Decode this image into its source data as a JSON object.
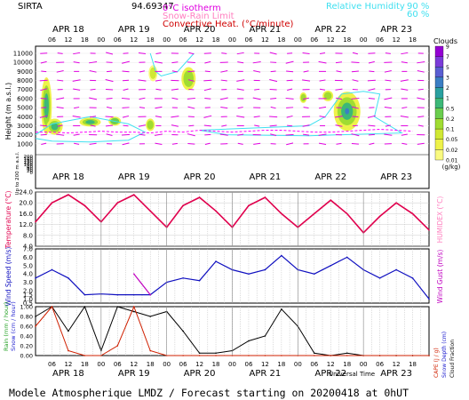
{
  "header": {
    "station": "SIRTA",
    "value": "94.69347",
    "isotherm_label": "0°C isotherm",
    "snow_rain_label": "Snow-Rain Limit",
    "convective_label": "Convective Heat. (°C/minute)",
    "rh_label": "Relative Humidity",
    "rh_90": "90 %",
    "rh_60": "60 %"
  },
  "footer": {
    "title": "Modele Atmospherique LMDZ / Forecast starting on 20200418 at 0hUT",
    "time_label": "Universal Time"
  },
  "colors": {
    "panel_line": "#000000",
    "temperature": "#e0004d",
    "wind": "#1010c0",
    "gust": "#c000c0",
    "rain": "#d02000",
    "cloud_fraction": "#000000",
    "rh": "#40e0f0",
    "isotherm": "#ff00ff"
  },
  "chart_data": [
    {
      "type": "heatmap",
      "name": "clouds-height",
      "ylabel": "Height (m a.s.l.)",
      "ylabel_low": "Up to 200 m a.s.l.",
      "days": [
        "APR 18",
        "APR 19",
        "APR 20",
        "APR 21",
        "APR 22",
        "APR 23"
      ],
      "hour_ticks": [
        "06",
        "12",
        "18",
        "00"
      ],
      "y_ticks_upper": [
        "11000",
        "10000",
        "9000",
        "8000",
        "7000",
        "6000",
        "5000",
        "4000",
        "3000",
        "2000",
        "1000"
      ],
      "y_ticks_lower": [
        "200",
        "180",
        "160",
        "140",
        "120",
        "100",
        "80",
        "60",
        "40",
        "20",
        "0"
      ],
      "colorbar_title": "Clouds",
      "colorbar_unit": "(g/kg)",
      "colorbar_ticks": [
        "9",
        "7",
        "5",
        "3",
        "2",
        "1",
        "0.5",
        "0.2",
        "0.1",
        "0.05",
        "0.02",
        "0.01"
      ],
      "colorbar_colors": [
        "#9400d3",
        "#7b3bd9",
        "#5a5ed2",
        "#3b7ec4",
        "#2aa0a0",
        "#3cb878",
        "#6acd4e",
        "#a0dc32",
        "#d0e834",
        "#eef24a",
        "#fafa80"
      ],
      "isotherm_height_m": [
        2300,
        2300,
        2200,
        2300,
        2400,
        2300,
        2300,
        2200,
        2400,
        2300,
        2500,
        2400,
        2300,
        2400,
        2500,
        2500,
        2400,
        2300,
        2300,
        2400,
        2500,
        2600,
        2500,
        2400
      ]
    },
    {
      "type": "line",
      "name": "temperature",
      "ylabel": "Temperature (°C)",
      "ylabel_right": "HUMIDEX (°C)",
      "ylim": [
        4,
        24
      ],
      "y_ticks": [
        "24.0",
        "20.0",
        "16.0",
        "12.0",
        "8.0",
        "4.0"
      ],
      "x_hours": [
        0,
        6,
        12,
        18,
        24,
        30,
        36,
        42,
        48,
        54,
        60,
        66,
        72,
        78,
        84,
        90,
        96,
        102,
        108,
        114,
        120,
        126,
        132,
        138,
        144
      ],
      "values": [
        13,
        20,
        23,
        19,
        13,
        20,
        23,
        17,
        11,
        19,
        22,
        17,
        11,
        19,
        22,
        16,
        11,
        16,
        21,
        16,
        9,
        15,
        20,
        16,
        10
      ]
    },
    {
      "type": "line",
      "name": "wind",
      "ylabel": "Wind Speed (m/s)",
      "ylabel_right": "Wind Gust (m/s)",
      "ylim": [
        0.5,
        7.0
      ],
      "y_ticks": [
        "7.0",
        "6.0",
        "5.0",
        "4.0",
        "3.0",
        "2.0",
        "1.5",
        "1.0",
        "0.5"
      ],
      "x_hours": [
        0,
        6,
        12,
        18,
        24,
        30,
        36,
        42,
        48,
        54,
        60,
        66,
        72,
        78,
        84,
        90,
        96,
        102,
        108,
        114,
        120,
        126,
        132,
        138,
        144
      ],
      "series": [
        {
          "values": [
            3.5,
            4.5,
            3.5,
            1.5,
            1.6,
            1.5,
            1.5,
            1.5,
            3.0,
            3.5,
            3.2,
            5.5,
            4.5,
            4.0,
            4.5,
            6.2,
            4.5,
            4.0,
            5.0,
            6.0,
            4.5,
            3.5,
            4.5,
            3.5,
            1.0
          ]
        },
        {
          "values": [
            null,
            null,
            null,
            null,
            null,
            null,
            4.0,
            1.5,
            null,
            null,
            null,
            null,
            null,
            null,
            null,
            null,
            null,
            null,
            null,
            null,
            null,
            null,
            null,
            null,
            null
          ]
        }
      ]
    },
    {
      "type": "line",
      "name": "precip-cloud-fraction",
      "ylabel_left": [
        "Rain (mm / hour)",
        "Snow (cm / hour)"
      ],
      "ylabel_right": [
        "CAPE (J / g)",
        "Snow Depth (cm)",
        "Cloud Fraction"
      ],
      "y_ticks": [
        "1.00",
        "0.80",
        "0.60",
        "0.40",
        "0.20",
        "0.00"
      ],
      "x_hours": [
        0,
        6,
        12,
        18,
        24,
        30,
        36,
        42,
        48,
        54,
        60,
        66,
        72,
        78,
        84,
        90,
        96,
        102,
        108,
        114,
        120,
        126,
        132,
        138,
        144
      ],
      "series": [
        {
          "values": [
            0.6,
            1.0,
            0.1,
            0.0,
            0.0,
            0.2,
            1.0,
            0.1,
            0.0,
            0.0,
            0.0,
            0.0,
            0.0,
            0.0,
            0.0,
            0.0,
            0.0,
            0.0,
            0.0,
            0.0,
            0.0,
            0.0,
            0.0,
            0.0,
            0.0
          ]
        },
        {
          "values": [
            0.8,
            1.0,
            0.5,
            1.0,
            0.1,
            1.0,
            0.9,
            0.8,
            0.9,
            0.5,
            0.05,
            0.05,
            0.1,
            0.3,
            0.4,
            0.95,
            0.6,
            0.05,
            0.0,
            0.05,
            0.0,
            0.0,
            0.0,
            0.0,
            0.0
          ]
        }
      ]
    }
  ]
}
